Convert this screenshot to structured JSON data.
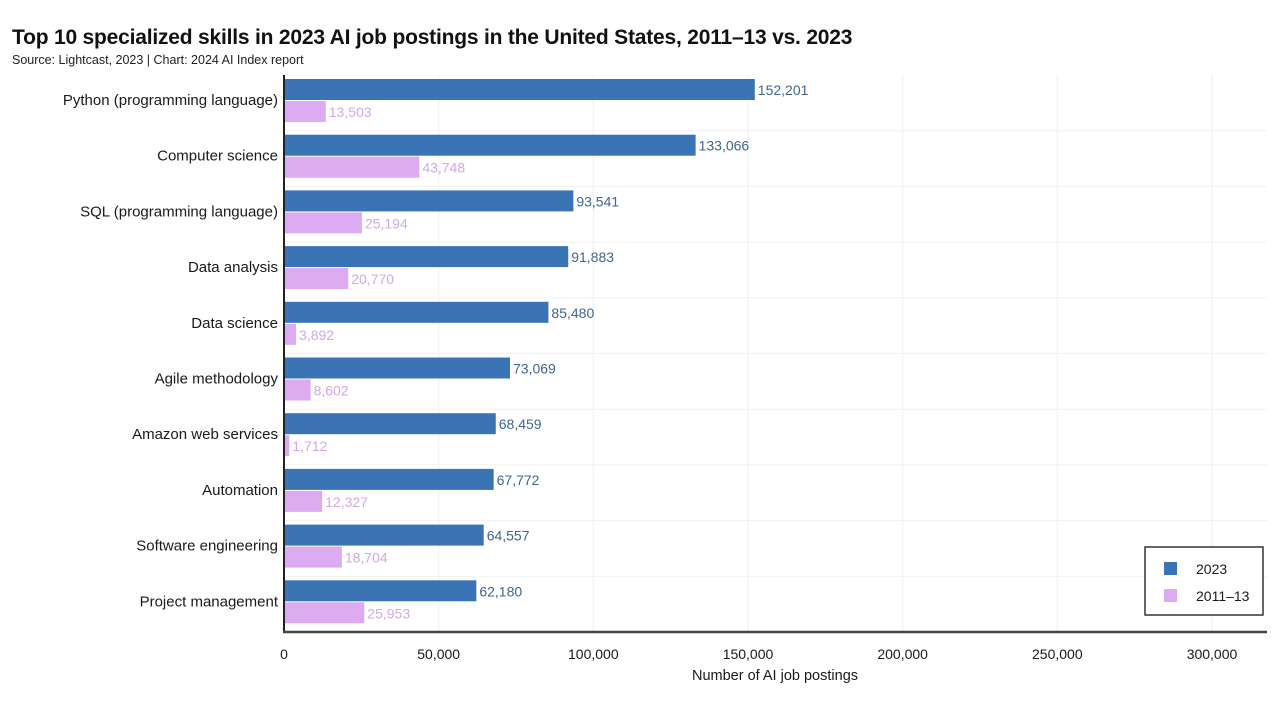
{
  "header": {
    "title": "Top 10 specialized skills in 2023 AI job postings in the United States, 2011–13 vs. 2023",
    "subtitle": "Source: Lightcast, 2023 | Chart: 2024 AI Index report"
  },
  "chart_data": {
    "type": "bar",
    "orientation": "horizontal",
    "title": "Top 10 specialized skills in 2023 AI job postings in the United States, 2011–13 vs. 2023",
    "subtitle": "Source: Lightcast, 2023 | Chart: 2024 AI Index report",
    "xlabel": "Number of AI job postings",
    "ylabel": "",
    "xlim": [
      0,
      320000
    ],
    "xticks": [
      0,
      50000,
      100000,
      150000,
      200000,
      250000,
      300000
    ],
    "xtick_labels": [
      "0",
      "50,000",
      "100,000",
      "150,000",
      "200,000",
      "250,000",
      "300,000"
    ],
    "grid": true,
    "legend_position": "bottom-right",
    "categories": [
      "Python (programming language)",
      "Computer science",
      "SQL (programming language)",
      "Data analysis",
      "Data science",
      "Agile methodology",
      "Amazon web services",
      "Automation",
      "Software engineering",
      "Project management"
    ],
    "series": [
      {
        "name": "2023",
        "color": "#3a74b4",
        "label_color": "#3f6690",
        "values": [
          152201,
          133066,
          93541,
          91883,
          85480,
          73069,
          68459,
          67772,
          64557,
          62180
        ],
        "labels": [
          "152,201",
          "133,066",
          "93,541",
          "91,883",
          "85,480",
          "73,069",
          "68,459",
          "67,772",
          "64,557",
          "62,180"
        ]
      },
      {
        "name": "2011–13",
        "color": "#dcabf2",
        "label_color": "#d3a8ea",
        "values": [
          13503,
          43748,
          25194,
          20770,
          3892,
          8602,
          1712,
          12327,
          18704,
          25953
        ],
        "labels": [
          "13,503",
          "43,748",
          "25,194",
          "20,770",
          "3,892",
          "8,602",
          "1,712",
          "12,327",
          "18,704",
          "25,953"
        ]
      }
    ]
  }
}
